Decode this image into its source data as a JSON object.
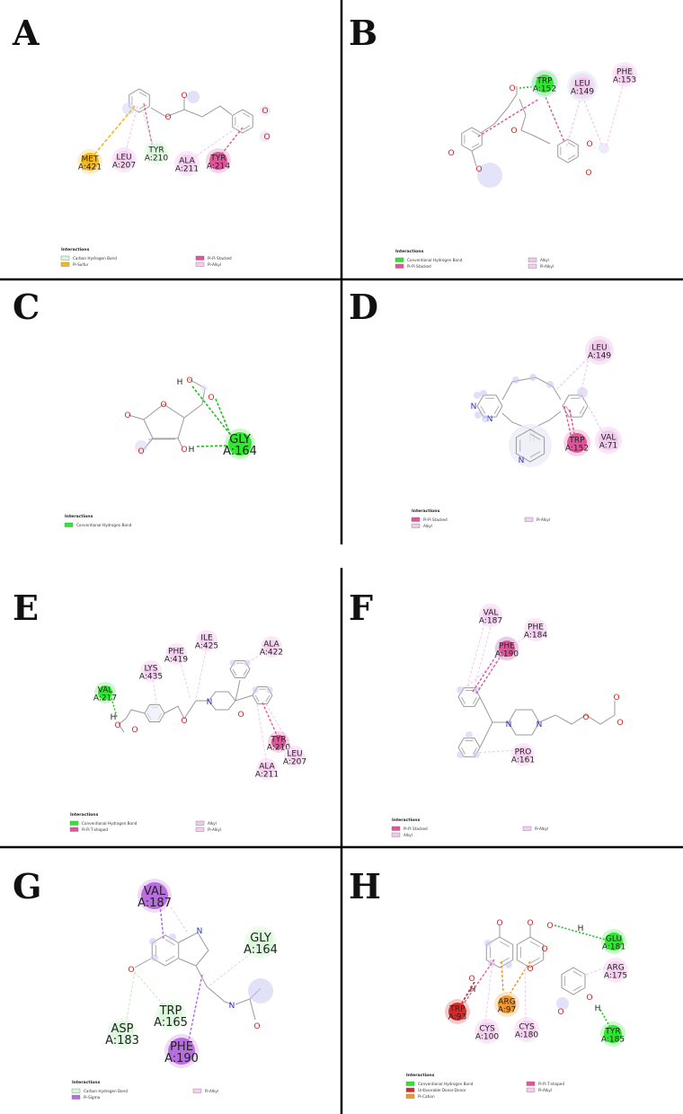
{
  "legend_title": "Interactions",
  "colors": {
    "conventional_h_bond": "#2ee82e",
    "carbon_h_bond": "#d9f7d9",
    "pi_sulfur": "#f5b81e",
    "pi_pi_stacked": "#e0559a",
    "pi_pi_t_shaped": "#e0559a",
    "pi_alkyl": "#f5cdf0",
    "alkyl": "#f0c8ec",
    "pi_sigma": "#b86ee0",
    "unfavorable_donor_donor": "#d92a2a",
    "pi_cation": "#f0982a"
  },
  "panels": [
    {
      "letter": "A",
      "residues": [
        {
          "name": "MET",
          "num": "A:421",
          "type": "pi_sulfur"
        },
        {
          "name": "LEU",
          "num": "A:207",
          "type": "pi_alkyl"
        },
        {
          "name": "TYR",
          "num": "A:210",
          "type": "carbon_h_bond"
        },
        {
          "name": "ALA",
          "num": "A:211",
          "type": "pi_alkyl"
        },
        {
          "name": "TYR",
          "num": "A:214",
          "type": "pi_pi_stacked"
        }
      ],
      "legend": [
        {
          "label": "Carbon Hydrogen Bond",
          "type": "carbon_h_bond"
        },
        {
          "label": "Pi-Sulfur",
          "type": "pi_sulfur"
        },
        {
          "label": "Pi-Pi Stacked",
          "type": "pi_pi_stacked"
        },
        {
          "label": "Pi-Alkyl",
          "type": "pi_alkyl"
        }
      ]
    },
    {
      "letter": "B",
      "residues": [
        {
          "name": "TRP",
          "num": "A:152",
          "type": "conventional_h_bond"
        },
        {
          "name": "LEU",
          "num": "A:149",
          "type": "alkyl"
        },
        {
          "name": "PHE",
          "num": "A:153",
          "type": "pi_alkyl"
        }
      ],
      "legend": [
        {
          "label": "Conventional Hydrogen Bond",
          "type": "conventional_h_bond"
        },
        {
          "label": "Pi-Pi Stacked",
          "type": "pi_pi_stacked"
        },
        {
          "label": "Alkyl",
          "type": "alkyl"
        },
        {
          "label": "Pi-Alkyl",
          "type": "pi_alkyl"
        }
      ]
    },
    {
      "letter": "C",
      "residues": [
        {
          "name": "GLY",
          "num": "A:164",
          "type": "conventional_h_bond"
        }
      ],
      "atoms": {
        "h1": "H",
        "h2": "H",
        "o1": "O",
        "o2": "O",
        "o3": "O",
        "o4": "O",
        "o5": "O"
      },
      "legend": [
        {
          "label": "Conventional Hydrogen Bond",
          "type": "conventional_h_bond"
        }
      ]
    },
    {
      "letter": "D",
      "residues": [
        {
          "name": "LEU",
          "num": "A:149",
          "type": "alkyl"
        },
        {
          "name": "TRP",
          "num": "A:152",
          "type": "pi_pi_stacked"
        },
        {
          "name": "VAL",
          "num": "A:71",
          "type": "alkyl"
        }
      ],
      "legend": [
        {
          "label": "Pi-Pi Stacked",
          "type": "pi_pi_stacked"
        },
        {
          "label": "Alkyl",
          "type": "alkyl"
        },
        {
          "label": "Pi-Alkyl",
          "type": "pi_alkyl"
        }
      ]
    },
    {
      "letter": "E",
      "residues": [
        {
          "name": "VAL",
          "num": "A:217",
          "type": "conventional_h_bond"
        },
        {
          "name": "LYS",
          "num": "A:435",
          "type": "pi_alkyl"
        },
        {
          "name": "PHE",
          "num": "A:419",
          "type": "pi_alkyl"
        },
        {
          "name": "ILE",
          "num": "A:425",
          "type": "pi_alkyl"
        },
        {
          "name": "ALA",
          "num": "A:422",
          "type": "pi_alkyl"
        },
        {
          "name": "TYR",
          "num": "A:210",
          "type": "pi_pi_t_shaped"
        },
        {
          "name": "LEU",
          "num": "A:207",
          "type": "pi_alkyl"
        },
        {
          "name": "ALA",
          "num": "A:211",
          "type": "pi_alkyl"
        }
      ],
      "legend": [
        {
          "label": "Conventional Hydrogen Bond",
          "type": "conventional_h_bond"
        },
        {
          "label": "Pi-Pi T-shaped",
          "type": "pi_pi_t_shaped"
        },
        {
          "label": "Alkyl",
          "type": "alkyl"
        },
        {
          "label": "Pi-Alkyl",
          "type": "pi_alkyl"
        }
      ]
    },
    {
      "letter": "F",
      "residues": [
        {
          "name": "VAL",
          "num": "A:187",
          "type": "pi_alkyl"
        },
        {
          "name": "PHE",
          "num": "A:184",
          "type": "pi_alkyl"
        },
        {
          "name": "PHE",
          "num": "A:190",
          "type": "pi_pi_stacked"
        },
        {
          "name": "PRO",
          "num": "A:161",
          "type": "pi_alkyl"
        }
      ],
      "legend": [
        {
          "label": "Pi-Pi Stacked",
          "type": "pi_pi_stacked"
        },
        {
          "label": "Alkyl",
          "type": "alkyl"
        },
        {
          "label": "Pi-Alkyl",
          "type": "pi_alkyl"
        }
      ]
    },
    {
      "letter": "G",
      "residues": [
        {
          "name": "VAL",
          "num": "A:187",
          "type": "pi_sigma"
        },
        {
          "name": "GLY",
          "num": "A:164",
          "type": "carbon_h_bond"
        },
        {
          "name": "TRP",
          "num": "A:165",
          "type": "carbon_h_bond"
        },
        {
          "name": "ASP",
          "num": "A:183",
          "type": "carbon_h_bond"
        },
        {
          "name": "PHE",
          "num": "A:190",
          "type": "pi_sigma"
        }
      ],
      "atoms": {
        "n": "N",
        "o1": "O",
        "o2": "O"
      },
      "legend": [
        {
          "label": "Carbon Hydrogen Bond",
          "type": "carbon_h_bond"
        },
        {
          "label": "Pi-Sigma",
          "type": "pi_sigma"
        },
        {
          "label": "Pi-Alkyl",
          "type": "pi_alkyl"
        }
      ]
    },
    {
      "letter": "H",
      "residues": [
        {
          "name": "GLU",
          "num": "A:181",
          "type": "conventional_h_bond"
        },
        {
          "name": "ARG",
          "num": "A:175",
          "type": "pi_alkyl"
        },
        {
          "name": "TRP",
          "num": "A:93",
          "type": "unfavorable_donor_donor"
        },
        {
          "name": "ARG",
          "num": "A:97",
          "type": "pi_cation"
        },
        {
          "name": "CYS",
          "num": "A:100",
          "type": "pi_alkyl"
        },
        {
          "name": "CYS",
          "num": "A:180",
          "type": "pi_alkyl"
        },
        {
          "name": "TYR",
          "num": "A:185",
          "type": "conventional_h_bond"
        }
      ],
      "legend": [
        {
          "label": "Conventional Hydrogen Bond",
          "type": "conventional_h_bond"
        },
        {
          "label": "Unfavorable Donor-Donor",
          "type": "unfavorable_donor_donor"
        },
        {
          "label": "Pi-Cation",
          "type": "pi_cation"
        },
        {
          "label": "Pi-Pi T-shaped",
          "type": "pi_pi_t_shaped"
        },
        {
          "label": "Pi-Alkyl",
          "type": "pi_alkyl"
        }
      ]
    }
  ]
}
